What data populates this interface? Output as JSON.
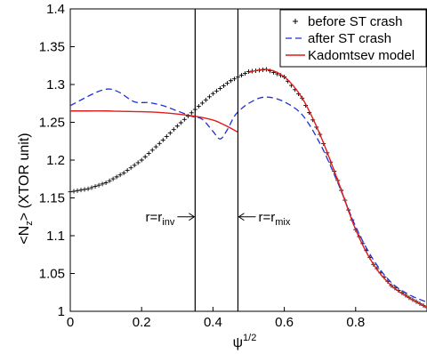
{
  "chart_data": {
    "type": "line",
    "title": "",
    "xlabel": "ψ",
    "xlabel_sup": "1/2",
    "ylabel_prefix": "<N",
    "ylabel_sub": "z",
    "ylabel_suffix": "> (XTOR unit)",
    "xlim": [
      0,
      1
    ],
    "ylim": [
      1,
      1.4
    ],
    "x_ticks": [
      0,
      0.2,
      0.4,
      0.6,
      0.8
    ],
    "x_tick_labels": [
      "0",
      "0.2",
      "0.4",
      "0.6",
      "0.8"
    ],
    "y_ticks": [
      1,
      1.05,
      1.1,
      1.15,
      1.2,
      1.25,
      1.3,
      1.35,
      1.4
    ],
    "y_tick_labels": [
      "1",
      "1.05",
      "1.1",
      "1.15",
      "1.2",
      "1.25",
      "1.3",
      "1.35",
      "1.4"
    ],
    "grid": false,
    "legend_position": "top-right",
    "series": [
      {
        "name": "before ST crash",
        "style": "plus-markers",
        "color": "#000000",
        "x": [
          0,
          0.05,
          0.1,
          0.15,
          0.2,
          0.25,
          0.3,
          0.35,
          0.4,
          0.45,
          0.5,
          0.55,
          0.6,
          0.65,
          0.7,
          0.75,
          0.8,
          0.85,
          0.9,
          0.95,
          1.0
        ],
        "y": [
          1.158,
          1.162,
          1.17,
          1.183,
          1.2,
          1.222,
          1.245,
          1.267,
          1.288,
          1.305,
          1.317,
          1.32,
          1.31,
          1.282,
          1.234,
          1.173,
          1.108,
          1.062,
          1.034,
          1.018,
          1.005
        ]
      },
      {
        "name": "after ST crash",
        "style": "dashed",
        "color": "#1f2fd6",
        "x": [
          0,
          0.04,
          0.08,
          0.11,
          0.14,
          0.18,
          0.22,
          0.26,
          0.3,
          0.34,
          0.37,
          0.4,
          0.42,
          0.44,
          0.46,
          0.48,
          0.5,
          0.53,
          0.56,
          0.6,
          0.65,
          0.7,
          0.75,
          0.8,
          0.85,
          0.9,
          0.95,
          1.0
        ],
        "y": [
          1.272,
          1.282,
          1.291,
          1.294,
          1.289,
          1.277,
          1.276,
          1.272,
          1.265,
          1.258,
          1.254,
          1.238,
          1.228,
          1.24,
          1.258,
          1.268,
          1.275,
          1.282,
          1.283,
          1.277,
          1.26,
          1.222,
          1.17,
          1.112,
          1.068,
          1.038,
          1.022,
          1.012
        ]
      },
      {
        "name": "Kadomtsev model",
        "style": "solid",
        "color": "#e11b1b",
        "x": [
          0,
          0.05,
          0.1,
          0.15,
          0.2,
          0.25,
          0.3,
          0.35,
          0.4,
          0.43,
          0.47,
          0.5,
          0.55,
          0.6,
          0.65,
          0.7,
          0.75,
          0.8,
          0.85,
          0.9,
          0.95,
          1.0
        ],
        "y": [
          1.265,
          1.265,
          1.265,
          1.2645,
          1.264,
          1.263,
          1.261,
          1.258,
          1.253,
          1.247,
          1.237,
          1.316,
          1.32,
          1.31,
          1.282,
          1.234,
          1.173,
          1.108,
          1.062,
          1.034,
          1.018,
          1.005
        ],
        "break_after_index": 10
      }
    ],
    "annotations": [
      {
        "kind": "vline",
        "x": 0.35,
        "label_main": "r=r",
        "label_sub": "inv",
        "arrow": "right"
      },
      {
        "kind": "vline",
        "x": 0.47,
        "label_main": "r=r",
        "label_sub": "mix",
        "arrow": "left"
      }
    ]
  }
}
